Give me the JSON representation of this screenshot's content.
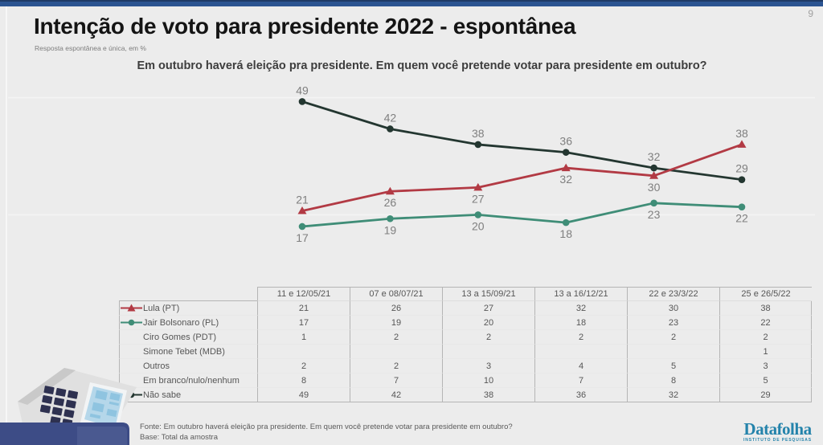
{
  "page": {
    "number": "9"
  },
  "header": {
    "title": "Intenção de voto para presidente 2022 - espontânea",
    "subtitle": "Resposta espontânea e única, em %"
  },
  "question": "Em outubro haverá eleição pra presidente. Em quem você pretende votar para presidente em outubro?",
  "chart_data": {
    "type": "line",
    "categories": [
      "11 e 12/05/21",
      "07 e 08/07/21",
      "13 a 15/09/21",
      "13 a 16/12/21",
      "22 e 23/3/22",
      "25 e 26/5/22"
    ],
    "series": [
      {
        "name": "Lula (PT)",
        "values": [
          21,
          26,
          27,
          32,
          30,
          38
        ],
        "color": "#b23a44",
        "marker": "triangle",
        "label_positions": [
          "above",
          "below",
          "below",
          "below",
          "below",
          "above"
        ]
      },
      {
        "name": "Jair Bolsonaro (PL)",
        "values": [
          17,
          19,
          20,
          18,
          23,
          22
        ],
        "color": "#3f8d77",
        "marker": "circle",
        "label_positions": [
          "below",
          "below",
          "below",
          "below",
          "below",
          "below"
        ]
      },
      {
        "name": "Não sabe",
        "values": [
          49,
          42,
          38,
          36,
          32,
          29
        ],
        "color": "#233630",
        "marker": "circle",
        "label_positions": [
          "above",
          "above",
          "above",
          "above",
          "above",
          "above"
        ]
      }
    ],
    "title": "Intenção de voto para presidente 2022 - espontânea",
    "xlabel": "",
    "ylabel": "",
    "ylim": [
      10,
      55
    ],
    "gridlines": [
      20,
      50
    ],
    "grid": true,
    "legend_position": "table-rows",
    "value_label_color": "#7f7f7f"
  },
  "table": {
    "columns": [
      "11 e 12/05/21",
      "07 e 08/07/21",
      "13 a 15/09/21",
      "13 a 16/12/21",
      "22 e 23/3/22",
      "25 e 26/5/22"
    ],
    "rows": [
      {
        "label": "Lula (PT)",
        "marker": "triangle",
        "color": "#b23a44",
        "values": [
          "21",
          "26",
          "27",
          "32",
          "30",
          "38"
        ]
      },
      {
        "label": "Jair Bolsonaro (PL)",
        "marker": "circle",
        "color": "#3f8d77",
        "values": [
          "17",
          "19",
          "20",
          "18",
          "23",
          "22"
        ]
      },
      {
        "label": "Ciro Gomes (PDT)",
        "marker": null,
        "color": null,
        "values": [
          "1",
          "2",
          "2",
          "2",
          "2",
          "2"
        ]
      },
      {
        "label": "Simone Tebet (MDB)",
        "marker": null,
        "color": null,
        "values": [
          "",
          "",
          "",
          "",
          "",
          "1"
        ]
      },
      {
        "label": "Outros",
        "marker": null,
        "color": null,
        "values": [
          "2",
          "2",
          "3",
          "4",
          "5",
          "3"
        ]
      },
      {
        "label": "Em branco/nulo/nenhum",
        "marker": null,
        "color": null,
        "values": [
          "8",
          "7",
          "10",
          "7",
          "8",
          "5"
        ]
      },
      {
        "label": "Não sabe",
        "marker": "circle",
        "color": "#233630",
        "values": [
          "49",
          "42",
          "38",
          "36",
          "32",
          "29"
        ]
      }
    ]
  },
  "footer": {
    "fonte": "Fonte: Em outubro haverá eleição pra presidente. Em quem você pretende votar para presidente em outubro?",
    "base": "Base: Total da amostra"
  },
  "logo": {
    "name": "Datafolha",
    "tagline": "INSTITUTO DE PESQUISAS"
  },
  "colors": {
    "background": "#ececec",
    "top_bar": "#2b5491",
    "footer_bar": "#3d4c86",
    "footer_bar_inner": "#4a5990",
    "gridline": "#f4f4f4",
    "table_border": "#b5b5b5",
    "logo_teal": "#2483ab"
  }
}
